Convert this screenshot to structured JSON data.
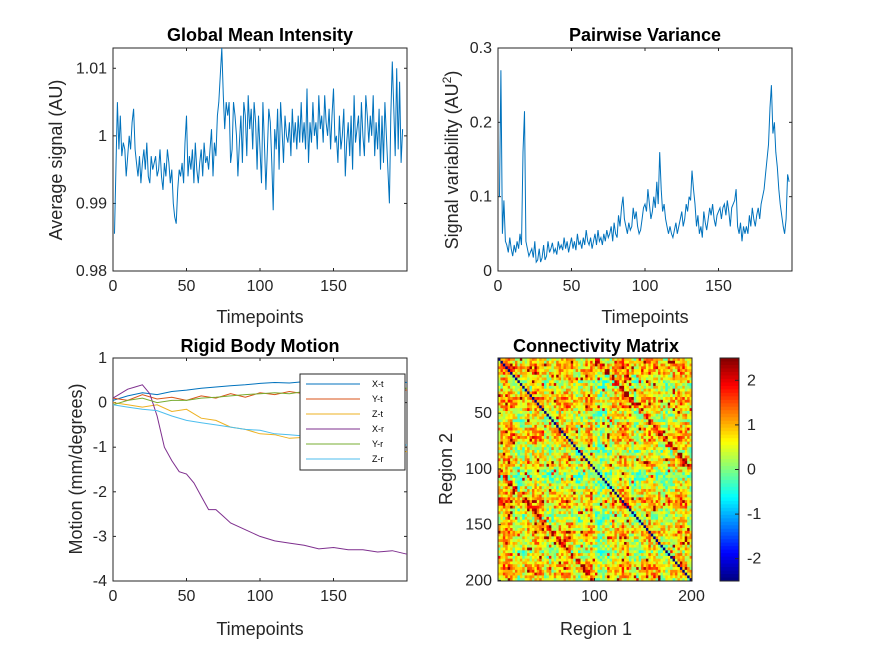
{
  "chart_data": [
    {
      "type": "line",
      "title": "Global Mean Intensity",
      "xlabel": "Timepoints",
      "ylabel": "Average signal (AU)",
      "xlim": [
        0,
        200
      ],
      "ylim": [
        0.98,
        1.013
      ],
      "xticks": [
        0,
        50,
        100,
        150
      ],
      "xtick_labels": [
        "0",
        "50",
        "100",
        "150"
      ],
      "yticks": [
        0.98,
        0.99,
        1.0,
        1.01
      ],
      "ytick_labels": [
        "0.98",
        "0.99",
        "1",
        "1.01"
      ],
      "color": "#0072BD",
      "series": [
        {
          "values": [
            0.9855,
            0.995,
            1.005,
            0.998,
            1.003,
            0.997,
            0.999,
            0.998,
            0.994,
            0.997,
            1.0,
            0.998,
            1.002,
            1.004,
            0.998,
            0.996,
            0.994,
            0.997,
            0.993,
            0.996,
            0.998,
            0.995,
            0.999,
            0.994,
            0.993,
            0.997,
            0.995,
            0.996,
            0.997,
            0.994,
            0.995,
            0.998,
            0.994,
            0.992,
            0.996,
            0.994,
            0.998,
            0.996,
            0.993,
            0.995,
            0.99,
            0.988,
            0.987,
            0.992,
            0.995,
            0.994,
            0.996,
            0.993,
            0.999,
            1.003,
            0.994,
            0.997,
            0.995,
            0.998,
            0.993,
            0.999,
            0.995,
            0.993,
            0.996,
            0.998,
            0.994,
            0.999,
            0.996,
            0.997,
            0.995,
            0.998,
            1.001,
            0.994,
            0.999,
            0.997,
            1.003,
            1.005,
            1.009,
            1.013,
            1.006,
            1.001,
            1.005,
            1.003,
            1.005,
            0.996,
            0.998,
            1.005,
            1.003,
            1.0,
            0.994,
            0.999,
            1.003,
            0.996,
            1.005,
            1.003,
            0.997,
            1.006,
            1.001,
            1.004,
            0.998,
            1.005,
            1.002,
            0.995,
            1.003,
            0.998,
            0.993,
            1.005,
            0.999,
            0.992,
            0.998,
            1.004,
            1.002,
            0.996,
            0.989,
            1.001,
            0.998,
            1.004,
            0.995,
            1.005,
            1.001,
            0.996,
            1.003,
            1.0,
            0.999,
            1.002,
            0.997,
            1.004,
            0.999,
            1.002,
            0.998,
            1.003,
            0.999,
            1.005,
            0.999,
            1.002,
            0.998,
            1.007,
            0.996,
            1.002,
            0.999,
            1.005,
            1.0,
            1.002,
            0.998,
            1.006,
            1.001,
            1.003,
            0.999,
            1.006,
            1.002,
            1.0,
            1.004,
            0.998,
            1.003,
            1.007,
            0.999,
            1.0,
            0.996,
            1.003,
            0.998,
            1.0,
            1.004,
            0.994,
            0.999,
            1.002,
            0.997,
            1.003,
            0.995,
            1.006,
            0.999,
            1.001,
            1.003,
            0.997,
            1.005,
            1.0,
            0.997,
            1.006,
            1.003,
            0.999,
            1.003,
            1.0,
            1.006,
            0.997,
            1.002,
            0.998,
            1.004,
            0.995,
            1.003,
            0.996,
            1.005,
            1.0,
            0.995,
            0.99,
            1.003,
            1.011,
            1.004,
            0.997,
            1.01,
            0.998,
            1.008,
            0.996,
            1.001
          ]
        }
      ]
    },
    {
      "type": "line",
      "title": "Pairwise Variance",
      "xlabel": "Timepoints",
      "ylabel": "Signal variability (AU",
      "ylabel_sup": "2",
      "ylabel_end": ")",
      "xlim": [
        0,
        200
      ],
      "ylim": [
        0,
        0.3
      ],
      "xticks": [
        0,
        50,
        100,
        150
      ],
      "xtick_labels": [
        "0",
        "50",
        "100",
        "150"
      ],
      "yticks": [
        0,
        0.1,
        0.2,
        0.3
      ],
      "ytick_labels": [
        "0",
        "0.1",
        "0.2",
        "0.3"
      ],
      "color": "#0072BD",
      "series": [
        {
          "values": [
            0.1,
            0.27,
            0.05,
            0.095,
            0.04,
            0.035,
            0.025,
            0.045,
            0.03,
            0.02,
            0.035,
            0.025,
            0.04,
            0.03,
            0.05,
            0.035,
            0.16,
            0.215,
            0.04,
            0.03,
            0.02,
            0.025,
            0.03,
            0.018,
            0.04,
            0.012,
            0.015,
            0.03,
            0.012,
            0.018,
            0.035,
            0.015,
            0.02,
            0.04,
            0.025,
            0.03,
            0.038,
            0.025,
            0.03,
            0.022,
            0.04,
            0.03,
            0.035,
            0.028,
            0.045,
            0.03,
            0.04,
            0.025,
            0.035,
            0.045,
            0.03,
            0.04,
            0.028,
            0.05,
            0.035,
            0.04,
            0.03,
            0.045,
            0.035,
            0.055,
            0.04,
            0.035,
            0.045,
            0.03,
            0.04,
            0.05,
            0.035,
            0.055,
            0.04,
            0.045,
            0.035,
            0.05,
            0.04,
            0.055,
            0.045,
            0.05,
            0.06,
            0.04,
            0.065,
            0.05,
            0.045,
            0.075,
            0.06,
            0.085,
            0.1,
            0.07,
            0.06,
            0.05,
            0.065,
            0.055,
            0.06,
            0.085,
            0.07,
            0.08,
            0.06,
            0.05,
            0.055,
            0.07,
            0.085,
            0.09,
            0.08,
            0.11,
            0.09,
            0.07,
            0.08,
            0.1,
            0.085,
            0.12,
            0.09,
            0.16,
            0.11,
            0.08,
            0.09,
            0.07,
            0.06,
            0.05,
            0.06,
            0.05,
            0.045,
            0.055,
            0.065,
            0.05,
            0.06,
            0.07,
            0.08,
            0.06,
            0.07,
            0.09,
            0.08,
            0.1,
            0.095,
            0.135,
            0.11,
            0.09,
            0.06,
            0.075,
            0.05,
            0.06,
            0.045,
            0.08,
            0.065,
            0.055,
            0.07,
            0.085,
            0.075,
            0.09,
            0.07,
            0.06,
            0.075,
            0.08,
            0.085,
            0.07,
            0.085,
            0.09,
            0.075,
            0.095,
            0.08,
            0.06,
            0.085,
            0.09,
            0.095,
            0.11,
            0.06,
            0.05,
            0.065,
            0.04,
            0.06,
            0.05,
            0.06,
            0.05,
            0.075,
            0.06,
            0.085,
            0.07,
            0.06,
            0.075,
            0.085,
            0.07,
            0.09,
            0.1,
            0.11,
            0.13,
            0.15,
            0.17,
            0.22,
            0.25,
            0.185,
            0.2,
            0.16,
            0.14,
            0.11,
            0.09,
            0.075,
            0.06,
            0.05,
            0.07,
            0.13,
            0.12
          ]
        }
      ]
    },
    {
      "type": "line",
      "title": "Rigid Body Motion",
      "xlabel": "Timepoints",
      "ylabel": "Motion (mm/degrees)",
      "xlim": [
        0,
        200
      ],
      "ylim": [
        -4,
        1
      ],
      "xticks": [
        0,
        50,
        100,
        150
      ],
      "xtick_labels": [
        "0",
        "50",
        "100",
        "150"
      ],
      "yticks": [
        -4,
        -3,
        -2,
        -1,
        0,
        1
      ],
      "ytick_labels": [
        "-4",
        "-3",
        "-2",
        "-1",
        "0",
        "1"
      ],
      "legend_position": "top-right",
      "series": [
        {
          "name": "X-t",
          "color": "#0072BD",
          "x": [
            0,
            10,
            20,
            30,
            40,
            50,
            60,
            70,
            80,
            90,
            100,
            110,
            120,
            130,
            140,
            150,
            160,
            170,
            180,
            190,
            200
          ],
          "values": [
            0.05,
            0.15,
            0.22,
            0.18,
            0.25,
            0.28,
            0.32,
            0.35,
            0.38,
            0.4,
            0.43,
            0.45,
            0.44,
            0.47,
            0.45,
            0.48,
            0.46,
            0.5,
            0.47,
            0.49,
            0.45
          ]
        },
        {
          "name": "Y-t",
          "color": "#D95319",
          "x": [
            0,
            10,
            20,
            30,
            40,
            50,
            60,
            70,
            80,
            90,
            100,
            110,
            120,
            130,
            140,
            150,
            160,
            170,
            180,
            190,
            200
          ],
          "values": [
            0.1,
            0.05,
            0.18,
            0.08,
            0.12,
            0.05,
            0.15,
            0.1,
            0.2,
            0.12,
            0.22,
            0.18,
            0.25,
            0.2,
            0.28,
            0.25,
            0.3,
            0.28,
            0.32,
            0.3,
            0.28
          ]
        },
        {
          "name": "Z-t",
          "color": "#EDB120",
          "x": [
            0,
            10,
            20,
            30,
            40,
            50,
            60,
            70,
            80,
            90,
            100,
            110,
            120,
            130,
            140,
            150,
            160,
            170,
            180,
            190,
            200
          ],
          "values": [
            0.0,
            -0.05,
            -0.1,
            -0.05,
            -0.2,
            -0.15,
            -0.35,
            -0.4,
            -0.55,
            -0.6,
            -0.7,
            -0.72,
            -0.8,
            -0.78,
            -0.85,
            -0.9,
            -0.95,
            -0.98,
            -1.0,
            -1.05,
            -1.1
          ]
        },
        {
          "name": "X-r",
          "color": "#7E2F8E",
          "x": [
            0,
            5,
            10,
            15,
            20,
            25,
            30,
            35,
            40,
            45,
            50,
            55,
            60,
            65,
            70,
            75,
            80,
            90,
            100,
            110,
            120,
            130,
            140,
            150,
            160,
            170,
            180,
            190,
            200
          ],
          "values": [
            0.1,
            0.2,
            0.3,
            0.35,
            0.4,
            0.2,
            -0.3,
            -1.0,
            -1.3,
            -1.55,
            -1.6,
            -1.8,
            -2.1,
            -2.4,
            -2.4,
            -2.55,
            -2.7,
            -2.85,
            -3.0,
            -3.1,
            -3.15,
            -3.2,
            -3.28,
            -3.25,
            -3.3,
            -3.3,
            -3.35,
            -3.32,
            -3.4
          ]
        },
        {
          "name": "Y-r",
          "color": "#77AC30",
          "x": [
            0,
            10,
            20,
            30,
            40,
            50,
            60,
            70,
            80,
            90,
            100,
            110,
            120,
            130,
            140,
            150,
            160,
            170,
            180,
            190,
            200
          ],
          "values": [
            -0.05,
            0.05,
            0.1,
            0.0,
            0.05,
            0.05,
            0.1,
            0.12,
            0.15,
            0.18,
            0.2,
            0.22,
            0.2,
            0.25,
            0.22,
            0.26,
            0.28,
            0.3,
            0.3,
            0.32,
            0.32
          ]
        },
        {
          "name": "Z-r",
          "color": "#4DBEEE",
          "x": [
            0,
            10,
            20,
            30,
            40,
            50,
            60,
            70,
            80,
            90,
            100,
            110,
            120,
            130,
            140,
            150,
            160,
            170,
            180,
            190,
            200
          ],
          "values": [
            -0.05,
            -0.1,
            -0.15,
            -0.18,
            -0.3,
            -0.4,
            -0.45,
            -0.5,
            -0.55,
            -0.6,
            -0.62,
            -0.7,
            -0.72,
            -0.75,
            -0.75,
            -0.8,
            -0.85,
            -0.88,
            -0.9,
            -0.95,
            -0.95
          ]
        }
      ]
    },
    {
      "type": "heatmap",
      "title": "Connectivity Matrix",
      "xlabel": "Region 1",
      "ylabel": "Region 2",
      "size": 200,
      "xticks": [
        100,
        200
      ],
      "xtick_labels": [
        "100",
        "200"
      ],
      "yticks": [
        50,
        100,
        150,
        200
      ],
      "ytick_labels": [
        "50",
        "100",
        "150",
        "200"
      ],
      "colormap": "jet",
      "clim": [
        -2.5,
        2.5
      ],
      "colorbar_ticks": [
        2,
        1,
        0,
        -1,
        -2
      ],
      "colorbar_tick_labels": [
        "2",
        "1",
        "0",
        "-1",
        "-2"
      ]
    }
  ]
}
